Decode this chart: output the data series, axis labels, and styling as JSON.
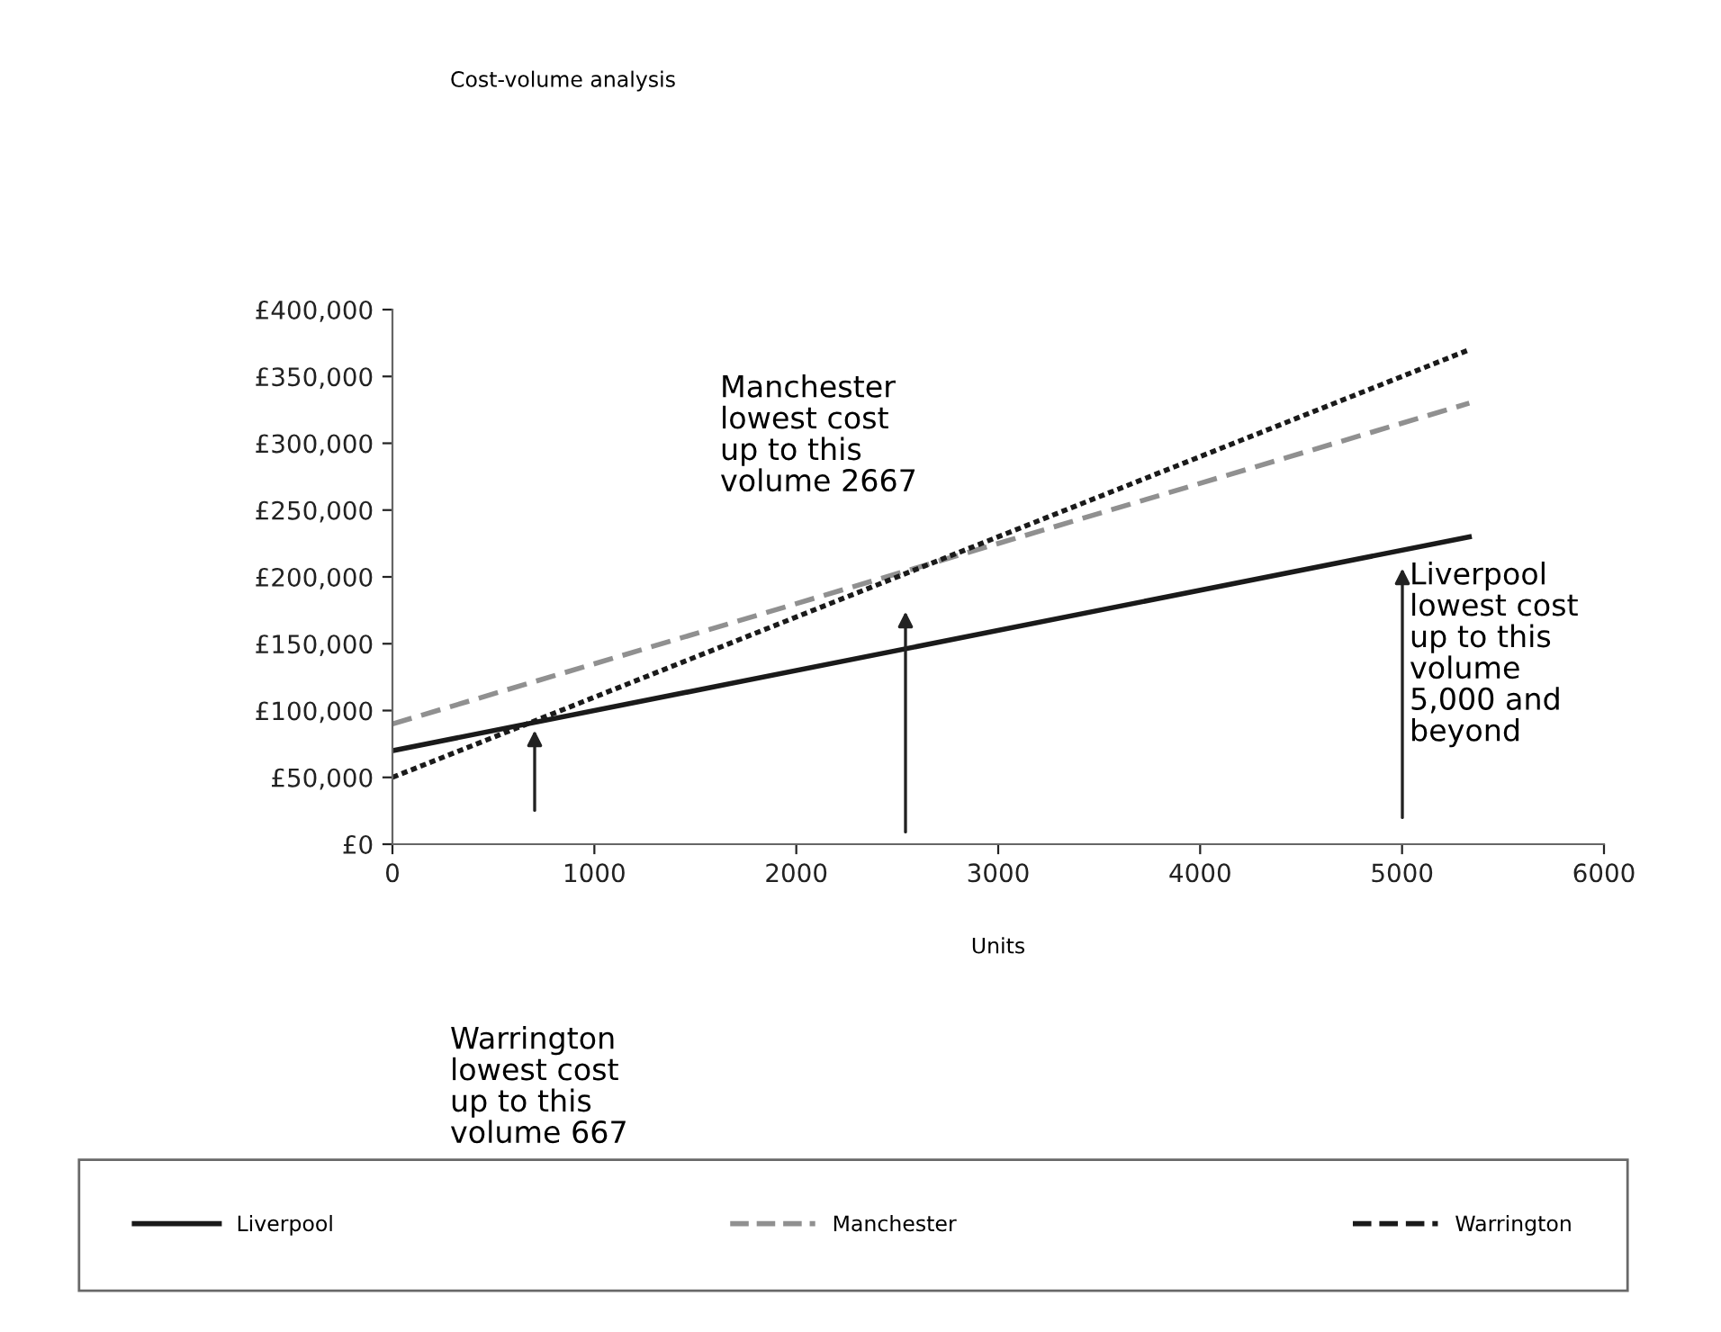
{
  "chart_data": {
    "type": "line",
    "title": "Cost-volume analysis",
    "xlabel": "Units",
    "x": [
      0,
      5333
    ],
    "series": [
      {
        "name": "Liverpool",
        "color": "#1a1a1a",
        "line_style": "solid",
        "values": [
          70000,
          230000
        ]
      },
      {
        "name": "Manchester",
        "color": "#909090",
        "line_style": "dashed",
        "values": [
          90000,
          330000
        ]
      },
      {
        "name": "Warrington",
        "color": "#1a1a1a",
        "line_style": "dotted",
        "values": [
          50000,
          370000
        ]
      }
    ],
    "xlim": [
      0,
      6000
    ],
    "xticks": [
      0,
      1000,
      2000,
      3000,
      4000,
      5000,
      6000
    ],
    "ylim": [
      0,
      400000
    ],
    "yticks": [
      {
        "value": 0,
        "label": "£0"
      },
      {
        "value": 50000,
        "label": "£50,000"
      },
      {
        "value": 100000,
        "label": "£100,000"
      },
      {
        "value": 150000,
        "label": "£150,000"
      },
      {
        "value": 200000,
        "label": "£200,000"
      },
      {
        "value": 250000,
        "label": "£250,000"
      },
      {
        "value": 300000,
        "label": "£300,000"
      },
      {
        "value": 350000,
        "label": "£350,000"
      },
      {
        "value": 400000,
        "label": "£400,000"
      }
    ],
    "annotations": [
      "Warrington\nlowest cost\nup to this\nvolume 667",
      "Manchester\nlowest cost\nup to this\nvolume 2667",
      "Liverpool\nlowest cost\nup to this\nvolume\n5,000 and\nbeyond"
    ],
    "grid": false,
    "legend": "bottom",
    "marker": "none"
  }
}
